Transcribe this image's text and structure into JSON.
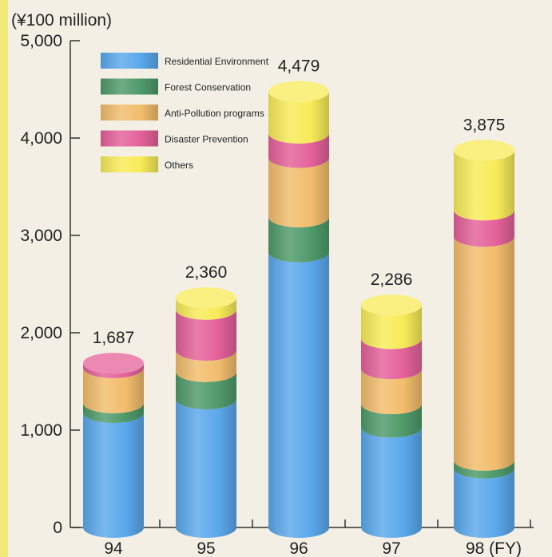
{
  "chart_data": {
    "type": "bar",
    "unit_label": "(¥100 million)",
    "categories": [
      "94",
      "95",
      "96",
      "97",
      "98 (FY)"
    ],
    "ylim": [
      0,
      5000
    ],
    "yticks": [
      {
        "value": 0,
        "label": "0"
      },
      {
        "value": 1000,
        "label": "1,000"
      },
      {
        "value": 2000,
        "label": "2,000"
      },
      {
        "value": 3000,
        "label": "3,000"
      },
      {
        "value": 4000,
        "label": "4,000"
      },
      {
        "value": 5000,
        "label": "5,000"
      }
    ],
    "series": [
      {
        "name": "Residential  Environment",
        "color": "#5aa8ec",
        "values": [
          1180,
          1320,
          2830,
          1030,
          610
        ]
      },
      {
        "name": "Forest Conservation",
        "color": "#4f9a6a",
        "values": [
          100,
          280,
          360,
          240,
          80
        ]
      },
      {
        "name": "Anti-Pollution programs",
        "color": "#f2bd6c",
        "values": [
          360,
          220,
          610,
          360,
          2300
        ]
      },
      {
        "name": "Disaster Prevention",
        "color": "#e4619a",
        "values": [
          47,
          420,
          250,
          310,
          270
        ]
      },
      {
        "name": "Others",
        "color": "#f8eb58",
        "values": [
          0,
          120,
          429,
          346,
          615
        ]
      }
    ],
    "totals": [
      "1,687",
      "2,360",
      "4,479",
      "2,286",
      "3,875"
    ],
    "legend_position": "top-left",
    "grid": false
  }
}
